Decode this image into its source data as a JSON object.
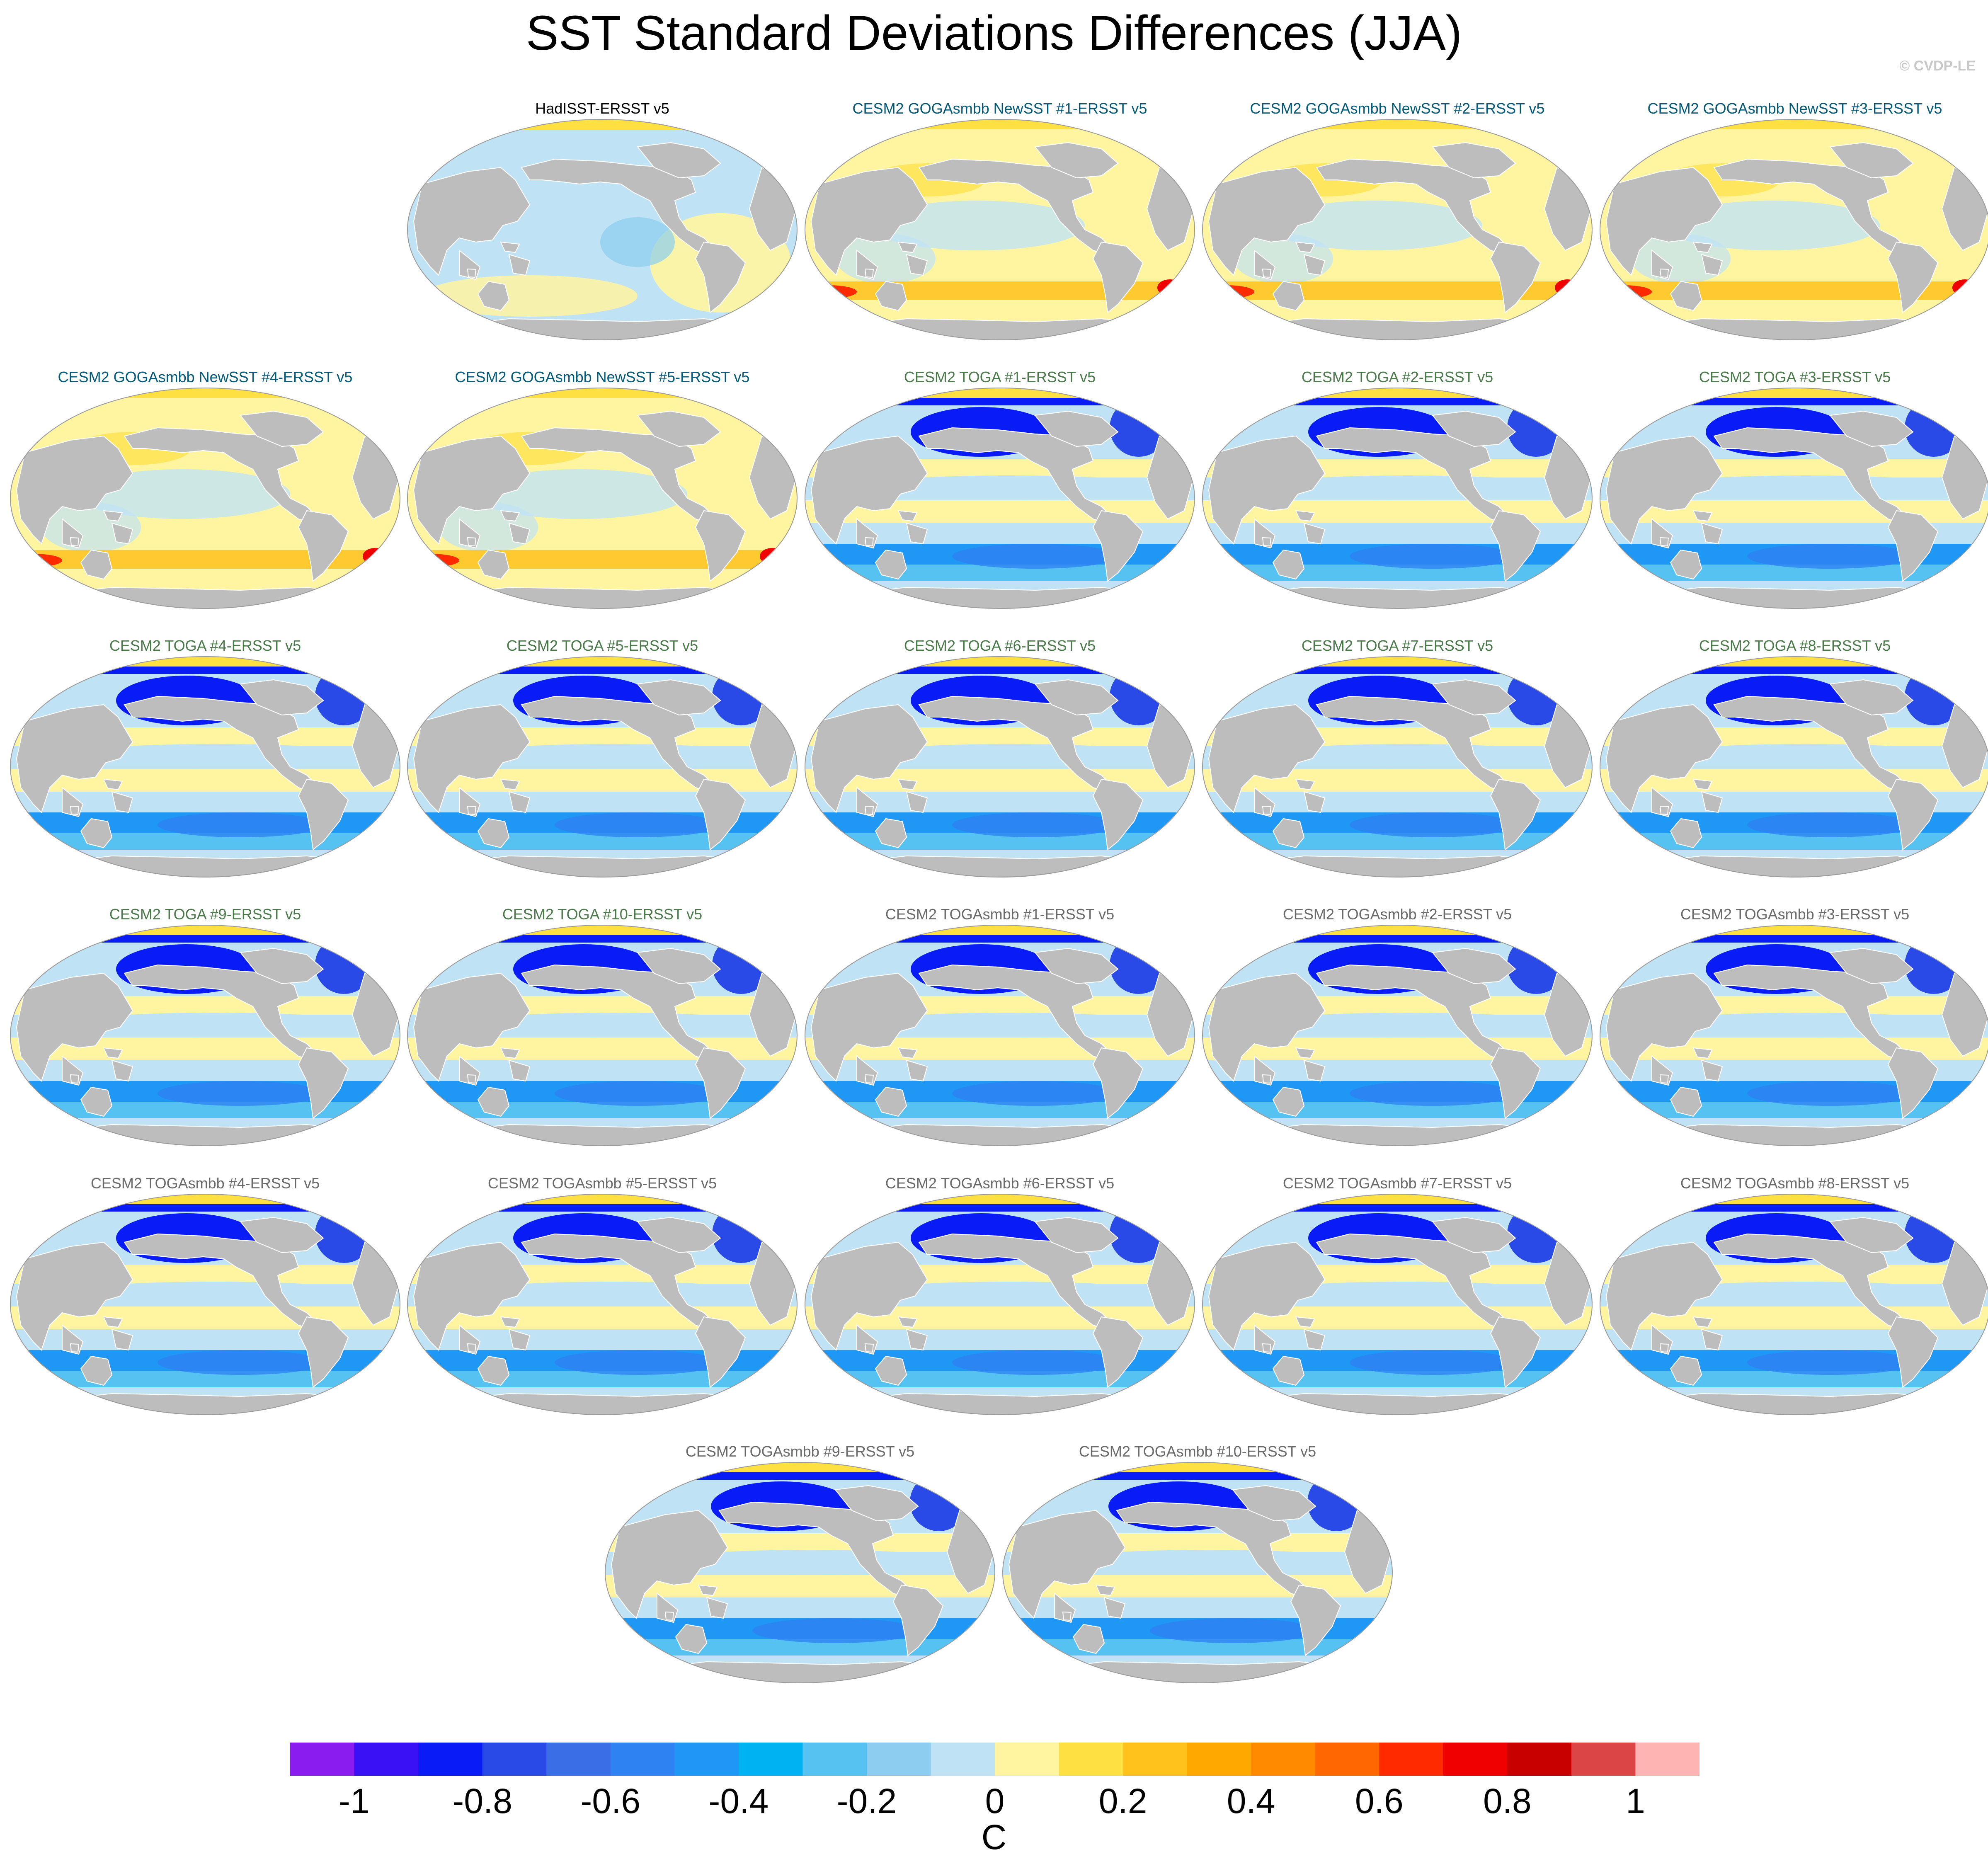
{
  "title": "SST Standard Deviations Differences (JJA)",
  "credit": "© CVDP-LE",
  "units": "C",
  "colorbar": {
    "tick_labels": [
      "-1",
      "-0.8",
      "-0.6",
      "-0.4",
      "-0.2",
      "0",
      "0.2",
      "0.4",
      "0.6",
      "0.8",
      "1"
    ],
    "colors": [
      "#8a1cf0",
      "#3a10f5",
      "#0a1cf5",
      "#2a4ae8",
      "#3a6ee6",
      "#2e82f2",
      "#1f98f5",
      "#00b2f2",
      "#55c2f2",
      "#8ccdf0",
      "#bfe3f5",
      "#fff5a0",
      "#ffe043",
      "#ffc21c",
      "#ffa800",
      "#ff8a00",
      "#ff6800",
      "#ff2a00",
      "#f00000",
      "#c80000",
      "#dc4545",
      "#ffb4b4"
    ]
  },
  "palette": {
    "land": "#bdbdbd",
    "title_obs": "#000000",
    "title_goga": "#005a78",
    "title_toga": "#4a7a4a",
    "title_togasmbb": "#6a6a6a"
  },
  "panels": [
    {
      "label": "HadISST-ERSST v5",
      "group": "obs"
    },
    {
      "label": "CESM2 GOGAsmbb NewSST #1-ERSST v5",
      "group": "goga"
    },
    {
      "label": "CESM2 GOGAsmbb NewSST #2-ERSST v5",
      "group": "goga"
    },
    {
      "label": "CESM2 GOGAsmbb NewSST #3-ERSST v5",
      "group": "goga"
    },
    {
      "label": "CESM2 GOGAsmbb NewSST #4-ERSST v5",
      "group": "goga"
    },
    {
      "label": "CESM2 GOGAsmbb NewSST #5-ERSST v5",
      "group": "goga"
    },
    {
      "label": "CESM2 TOGA #1-ERSST v5",
      "group": "toga"
    },
    {
      "label": "CESM2 TOGA #2-ERSST v5",
      "group": "toga"
    },
    {
      "label": "CESM2 TOGA #3-ERSST v5",
      "group": "toga"
    },
    {
      "label": "CESM2 TOGA #4-ERSST v5",
      "group": "toga"
    },
    {
      "label": "CESM2 TOGA #5-ERSST v5",
      "group": "toga"
    },
    {
      "label": "CESM2 TOGA #6-ERSST v5",
      "group": "toga"
    },
    {
      "label": "CESM2 TOGA #7-ERSST v5",
      "group": "toga"
    },
    {
      "label": "CESM2 TOGA #8-ERSST v5",
      "group": "toga"
    },
    {
      "label": "CESM2 TOGA #9-ERSST v5",
      "group": "toga"
    },
    {
      "label": "CESM2 TOGA #10-ERSST v5",
      "group": "toga"
    },
    {
      "label": "CESM2 TOGAsmbb #1-ERSST v5",
      "group": "togasmbb"
    },
    {
      "label": "CESM2 TOGAsmbb #2-ERSST v5",
      "group": "togasmbb"
    },
    {
      "label": "CESM2 TOGAsmbb #3-ERSST v5",
      "group": "togasmbb"
    },
    {
      "label": "CESM2 TOGAsmbb #4-ERSST v5",
      "group": "togasmbb"
    },
    {
      "label": "CESM2 TOGAsmbb #5-ERSST v5",
      "group": "togasmbb"
    },
    {
      "label": "CESM2 TOGAsmbb #6-ERSST v5",
      "group": "togasmbb"
    },
    {
      "label": "CESM2 TOGAsmbb #7-ERSST v5",
      "group": "togasmbb"
    },
    {
      "label": "CESM2 TOGAsmbb #8-ERSST v5",
      "group": "togasmbb"
    },
    {
      "label": "CESM2 TOGAsmbb #9-ERSST v5",
      "group": "togasmbb"
    },
    {
      "label": "CESM2 TOGAsmbb #10-ERSST v5",
      "group": "togasmbb"
    }
  ]
}
